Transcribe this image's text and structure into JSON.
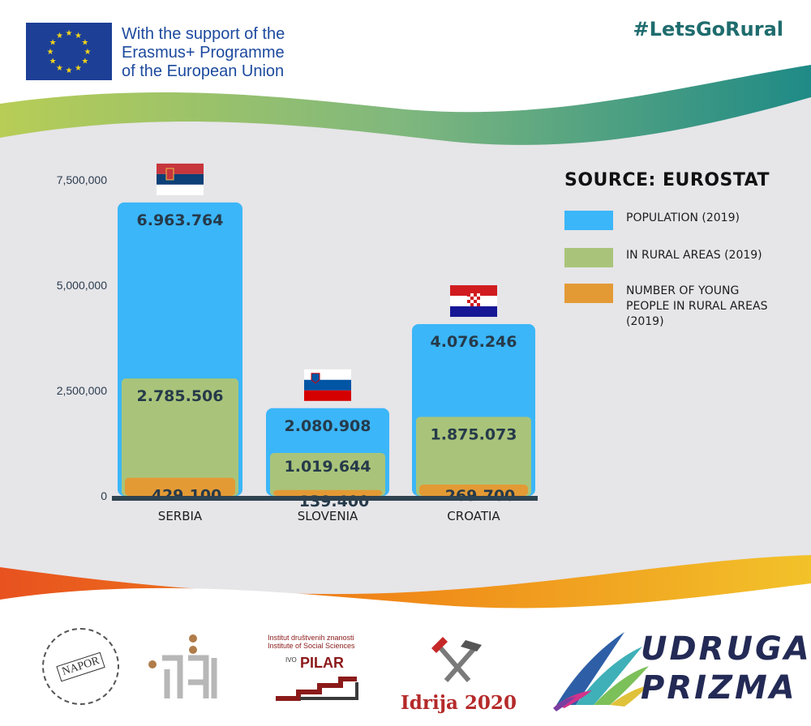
{
  "header": {
    "eu_text": [
      "With the support of the",
      "Erasmus+ Programme",
      "of the European Union"
    ],
    "hashtag": "#LetsGoRural"
  },
  "legend": {
    "title": "SOURCE: EUROSTAT",
    "items": [
      {
        "label": "POPULATION (2019)",
        "color": "#3bb6f8"
      },
      {
        "label": "IN RURAL AREAS (2019)",
        "color": "#a9c47a"
      },
      {
        "label": "NUMBER OF YOUNG PEOPLE IN RURAL AREAS (2019)",
        "color": "#e39a35"
      }
    ]
  },
  "chart_data": {
    "type": "bar",
    "categories": [
      "SERBIA",
      "SLOVENIA",
      "CROATIA"
    ],
    "series": [
      {
        "name": "POPULATION (2019)",
        "color": "#3bb6f8",
        "values": [
          6963764,
          2080908,
          4076246
        ],
        "labels": [
          "6.963.764",
          "2.080.908",
          "4.076.246"
        ]
      },
      {
        "name": "IN RURAL AREAS (2019)",
        "color": "#a9c47a",
        "values": [
          2785506,
          1019644,
          1875073
        ],
        "labels": [
          "2.785.506",
          "1.019.644",
          "1.875.073"
        ]
      },
      {
        "name": "NUMBER OF YOUNG PEOPLE IN RURAL AREAS (2019)",
        "color": "#e39a35",
        "values": [
          429100,
          139400,
          269700
        ],
        "labels": [
          "429.100",
          "139.400",
          "269.700"
        ]
      }
    ],
    "y_ticks": [
      0,
      2500000,
      5000000,
      7500000
    ],
    "y_tick_labels": [
      "0",
      "2,500,000",
      "5,000,000",
      "7,500,000"
    ],
    "ylim": [
      0,
      7500000
    ],
    "flags": [
      "serbia-flag",
      "slovenia-flag",
      "croatia-flag"
    ],
    "legend_position": "top-right"
  },
  "logos": {
    "napor": "NAPOR",
    "pilar_lines": [
      "Institut društvenih znanosti",
      "Institute of Social Sciences"
    ],
    "pilar_ivo": "IVO",
    "pilar_name": "PILAR",
    "idrija": "Idrija 2020",
    "prizma": [
      "UDRUGA",
      "PRIZMA"
    ]
  }
}
